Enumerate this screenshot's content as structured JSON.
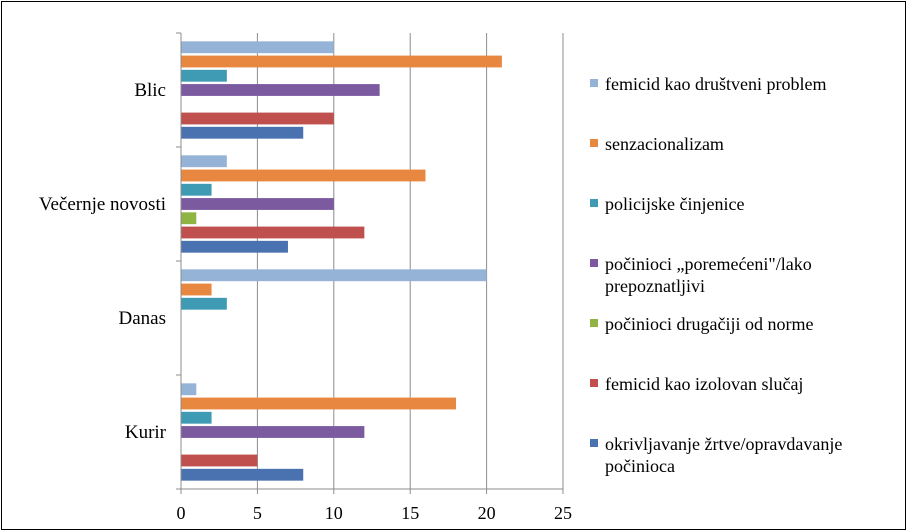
{
  "chart_data": {
    "type": "bar",
    "orientation": "horizontal",
    "categories": [
      "Blic",
      "Večernje novosti",
      "Danas",
      "Kurir"
    ],
    "x_ticks": [
      "0",
      "5",
      "10",
      "15",
      "20",
      "25"
    ],
    "xlim": [
      0,
      25
    ],
    "grid": "vertical",
    "legend_position": "right",
    "series": [
      {
        "name": "femicid kao društveni problem",
        "color": "#95b3d7",
        "values": [
          10,
          3,
          20,
          1
        ]
      },
      {
        "name": "senzacionalizam",
        "color": "#e8873f",
        "values": [
          21,
          16,
          2,
          18
        ]
      },
      {
        "name": "policijske činjenice",
        "color": "#3f9bb3",
        "values": [
          3,
          2,
          3,
          2
        ]
      },
      {
        "name": "počinioci „poremećeni\"/lako prepoznatljivi",
        "color": "#7b5aa0",
        "values": [
          13,
          10,
          0,
          12
        ]
      },
      {
        "name": "počinioci drugačiji od norme",
        "color": "#8fb444",
        "values": [
          0,
          1,
          0,
          0
        ]
      },
      {
        "name": "femicid kao izolovan slučaj",
        "color": "#c0504d",
        "values": [
          10,
          12,
          0,
          5
        ]
      },
      {
        "name": "okrivljavanje žrtve/opravdavanje počinioca",
        "color": "#4a72b0",
        "values": [
          8,
          7,
          0,
          8
        ]
      }
    ]
  },
  "legend_lines": [
    [
      "femicid kao društveni problem"
    ],
    [
      "senzacionalizam"
    ],
    [
      "policijske činjenice"
    ],
    [
      "počinioci „poremećeni\"/lako",
      "prepoznatljivi"
    ],
    [
      "počinioci drugačiji od norme"
    ],
    [
      "femicid kao izolovan slučaj"
    ],
    [
      "okrivljavanje žrtve/opravdavanje",
      "počinioca"
    ]
  ]
}
